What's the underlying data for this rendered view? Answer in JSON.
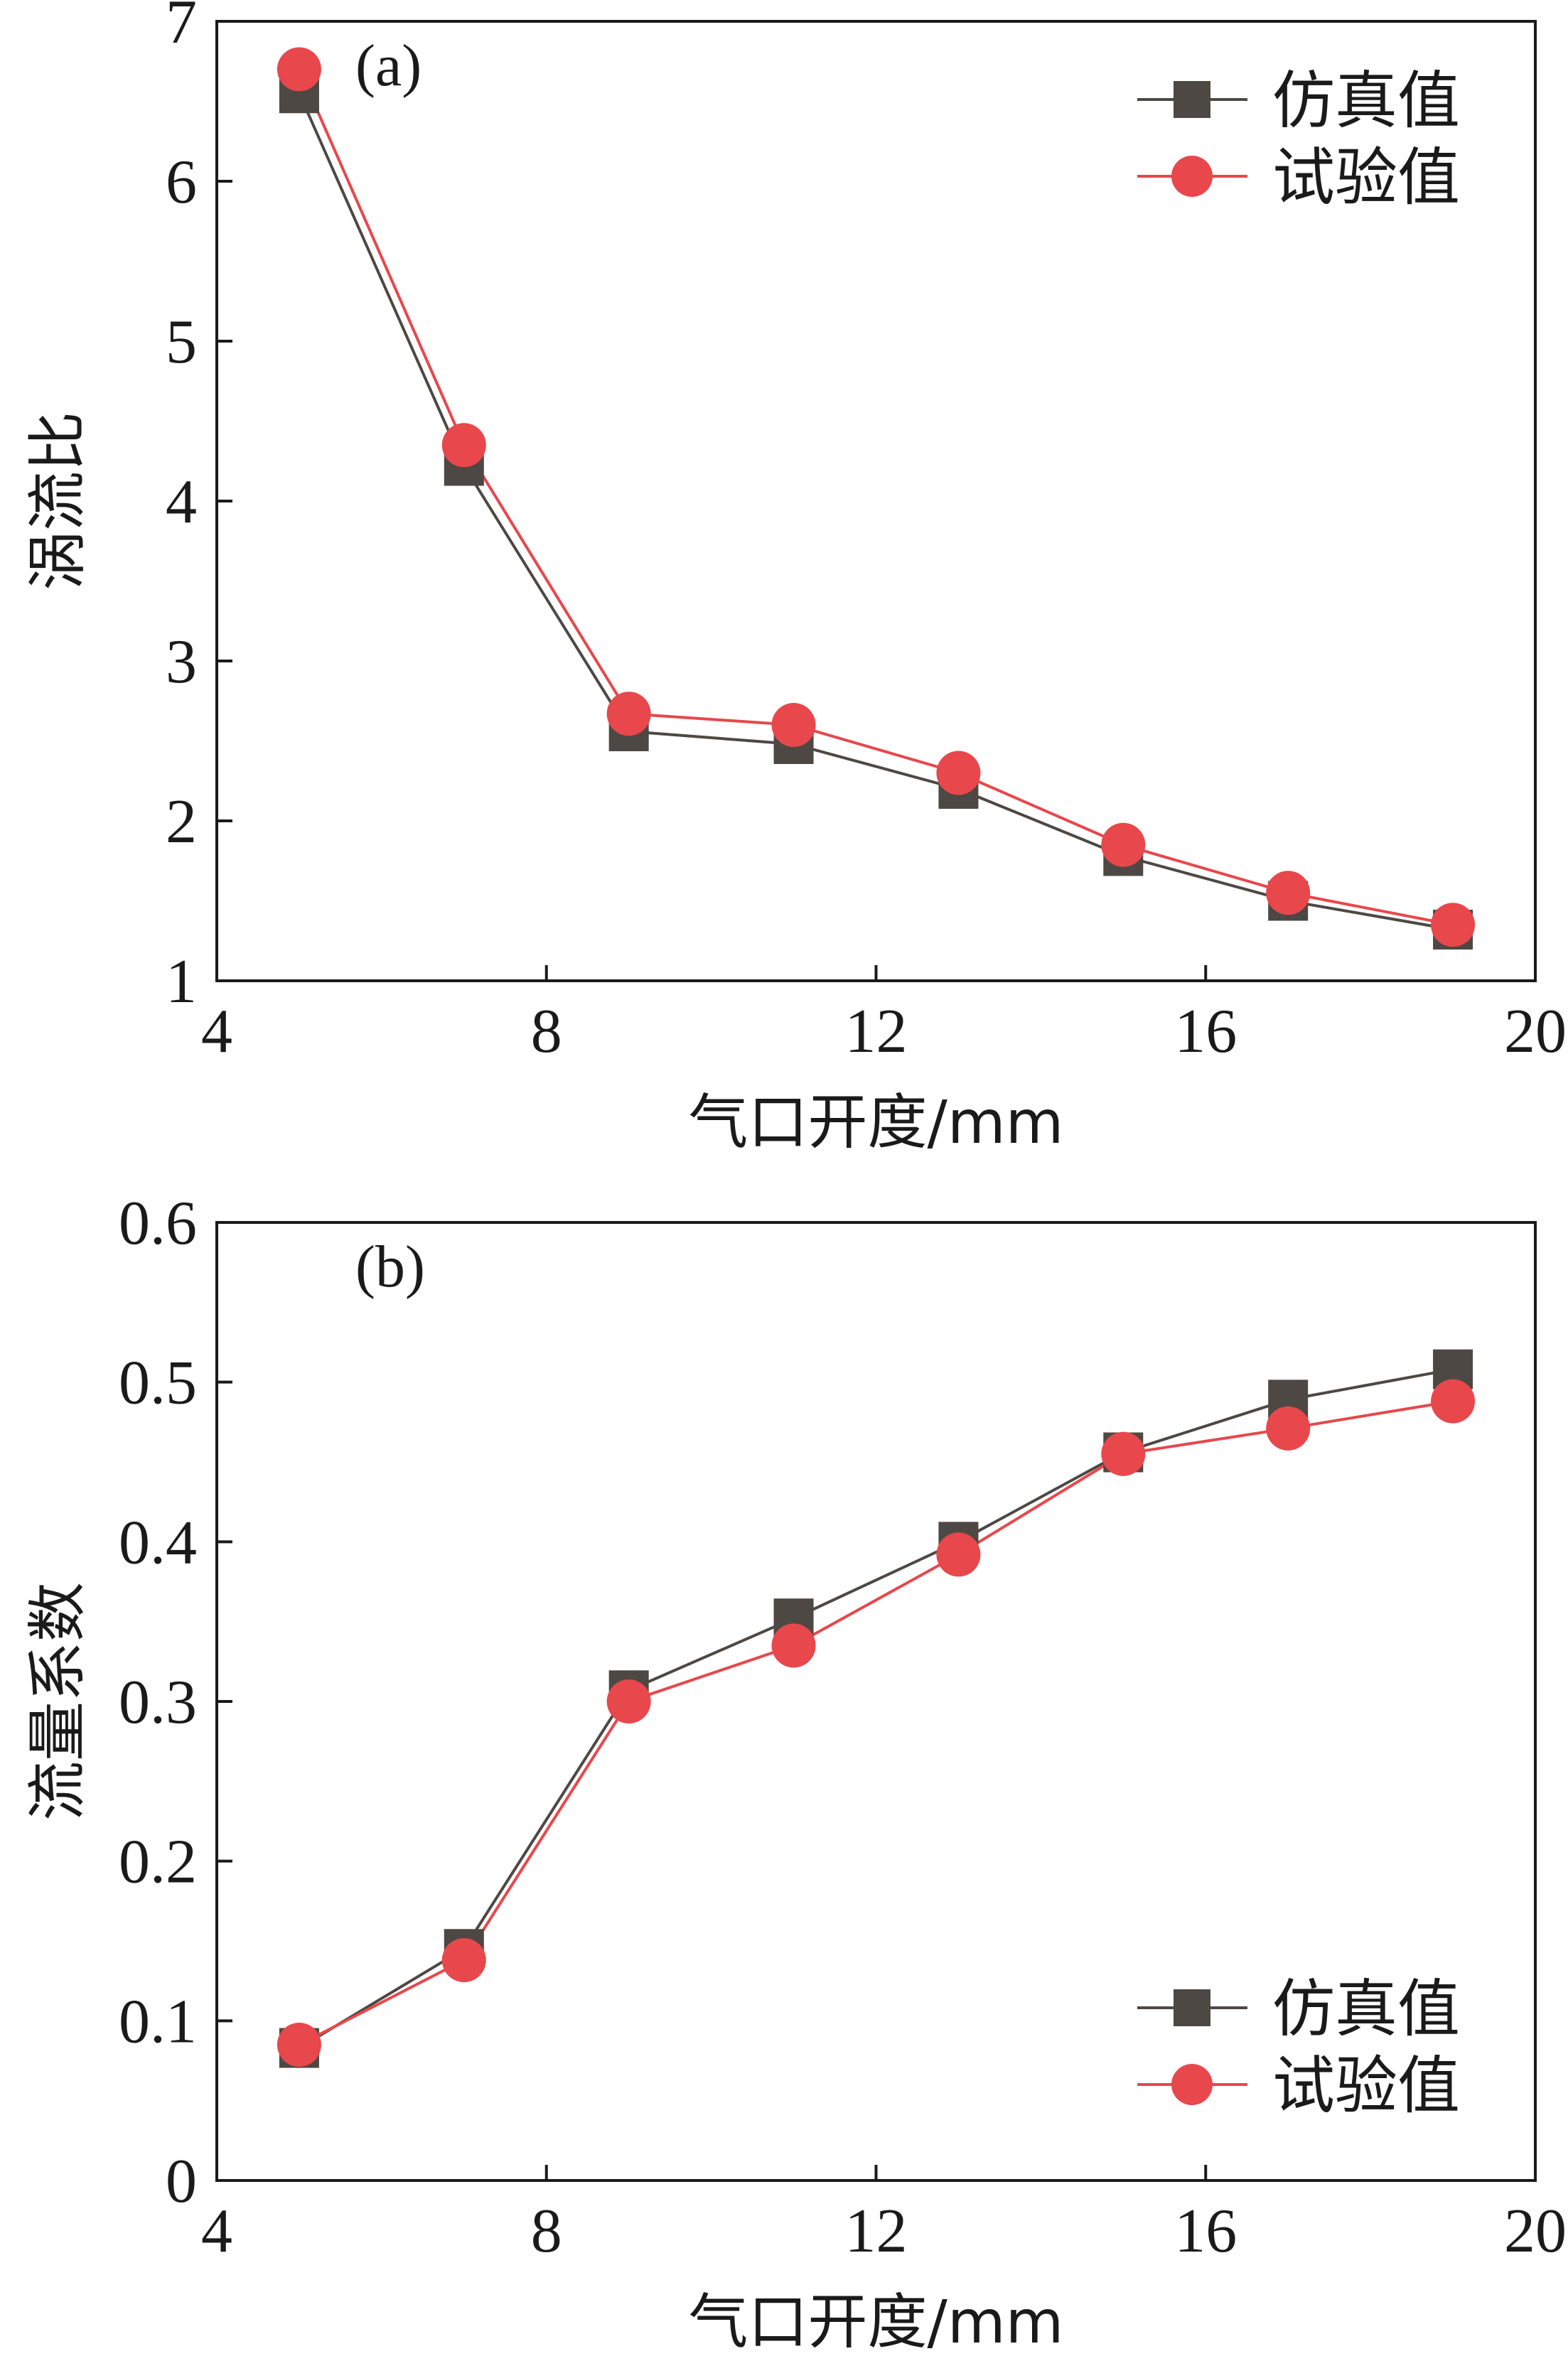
{
  "colors": {
    "sim": "#4d4843",
    "exp": "#e8474c",
    "axis": "#1a1a1a"
  },
  "chart_data": [
    {
      "type": "line",
      "panel": "(a)",
      "xlabel": "气口开度/mm",
      "ylabel": "涡流比",
      "xlim": [
        4,
        20
      ],
      "ylim": [
        1,
        7
      ],
      "xticks": [
        4,
        8,
        12,
        16,
        20
      ],
      "xtick_labels": [
        "4",
        "8",
        "12",
        "16",
        "20"
      ],
      "yticks": [
        1,
        2,
        3,
        4,
        5,
        6,
        7
      ],
      "ytick_labels": [
        "1",
        "2",
        "3",
        "4",
        "5",
        "6",
        "7"
      ],
      "legend_position": "top-right",
      "series": [
        {
          "name": "仿真值",
          "marker": "square",
          "x": [
            5,
            7,
            9,
            11,
            13,
            15,
            17,
            19
          ],
          "y": [
            6.55,
            4.22,
            2.56,
            2.48,
            2.2,
            1.78,
            1.5,
            1.32
          ]
        },
        {
          "name": "试验值",
          "marker": "circle",
          "x": [
            5,
            7,
            9,
            11,
            13,
            15,
            17,
            19
          ],
          "y": [
            6.7,
            4.35,
            2.67,
            2.6,
            2.3,
            1.85,
            1.55,
            1.35
          ]
        }
      ]
    },
    {
      "type": "line",
      "panel": "(b)",
      "xlabel": "气口开度/mm",
      "ylabel": "流量系数",
      "xlim": [
        4,
        20
      ],
      "ylim": [
        0,
        0.6
      ],
      "xticks": [
        4,
        8,
        12,
        16,
        20
      ],
      "xtick_labels": [
        "4",
        "8",
        "12",
        "16",
        "20"
      ],
      "yticks": [
        0,
        0.1,
        0.2,
        0.3,
        0.4,
        0.5,
        0.6
      ],
      "ytick_labels": [
        "0",
        "0.1",
        "0.2",
        "0.3",
        "0.4",
        "0.5",
        "0.6"
      ],
      "legend_position": "bottom-right",
      "series": [
        {
          "name": "仿真值",
          "marker": "square",
          "x": [
            5,
            7,
            9,
            11,
            13,
            15,
            17,
            19
          ],
          "y": [
            0.083,
            0.145,
            0.307,
            0.352,
            0.4,
            0.456,
            0.489,
            0.508
          ]
        },
        {
          "name": "试验值",
          "marker": "circle",
          "x": [
            5,
            7,
            9,
            11,
            13,
            15,
            17,
            19
          ],
          "y": [
            0.085,
            0.138,
            0.3,
            0.335,
            0.392,
            0.455,
            0.471,
            0.488
          ]
        }
      ]
    }
  ]
}
